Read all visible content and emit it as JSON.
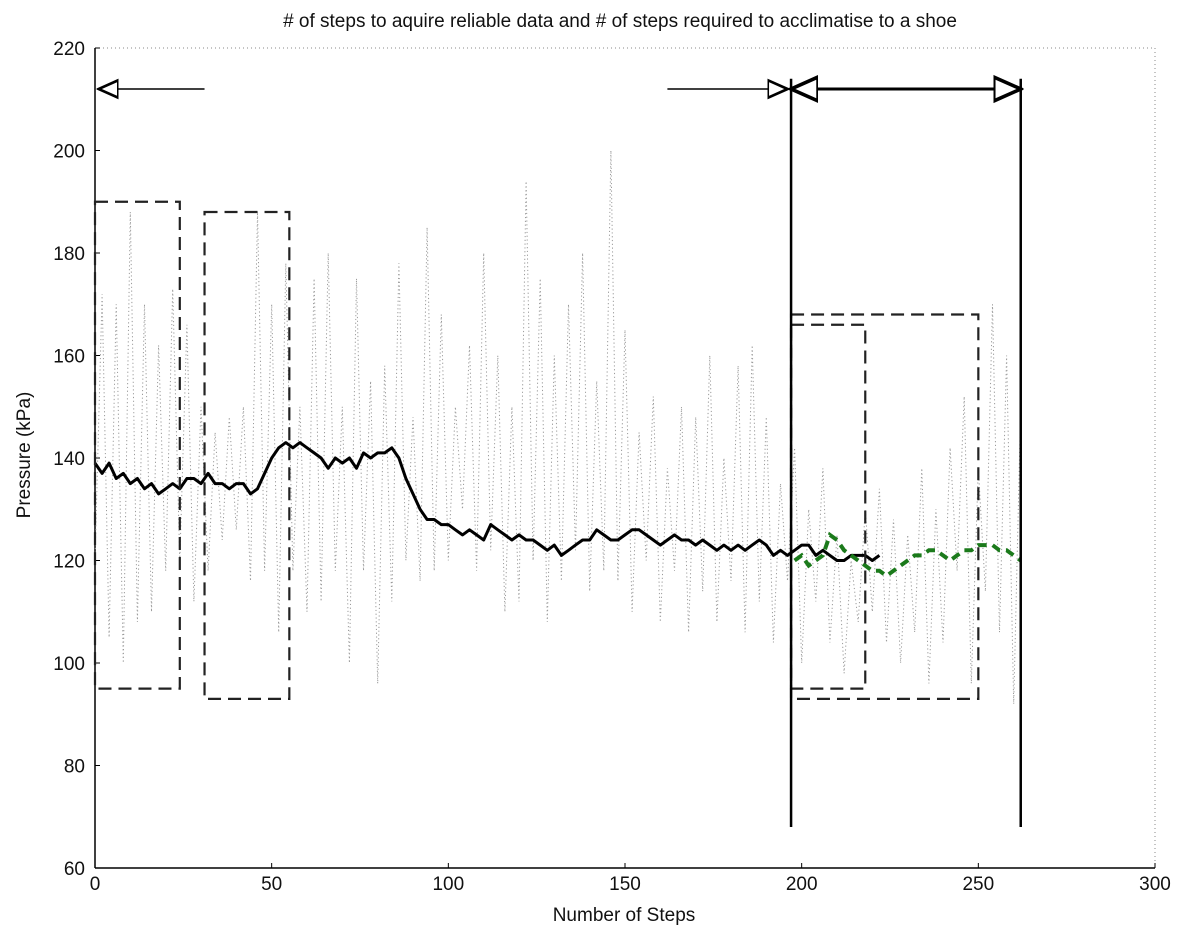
{
  "chart_data": {
    "type": "line",
    "title": "# of steps to aquire reliable data and # of steps required to acclimatise to a shoe",
    "xlabel": "Number of Steps",
    "ylabel": "Pressure (kPa)",
    "xlim": [
      0,
      300
    ],
    "ylim": [
      60,
      220
    ],
    "xticks": [
      0,
      50,
      100,
      150,
      200,
      250,
      300
    ],
    "yticks": [
      60,
      80,
      100,
      120,
      140,
      160,
      180,
      200,
      220
    ],
    "grid": false,
    "legend": "none",
    "series": [
      {
        "style": "dotted",
        "color": "#9a9a9a",
        "x": [
          0,
          2,
          4,
          6,
          8,
          10,
          12,
          14,
          16,
          18,
          20,
          22,
          24,
          26,
          28,
          30,
          32,
          34,
          36,
          38,
          40,
          42,
          44,
          46,
          48,
          50,
          52,
          54,
          56,
          58,
          60,
          62,
          64,
          66,
          68,
          70,
          72,
          74,
          76,
          78,
          80,
          82,
          84,
          86,
          88,
          90,
          92,
          94,
          96,
          98,
          100,
          102,
          104,
          106,
          108,
          110,
          112,
          114,
          116,
          118,
          120,
          122,
          124,
          126,
          128,
          130,
          132,
          134,
          136,
          138,
          140,
          142,
          144,
          146,
          148,
          150,
          152,
          154,
          156,
          158,
          160,
          162,
          164,
          166,
          168,
          170,
          172,
          174,
          176,
          178,
          180,
          182,
          184,
          186,
          188,
          190,
          192,
          194,
          196,
          198,
          200,
          202,
          204,
          206,
          208,
          210,
          212,
          214,
          216,
          218,
          220,
          222,
          224,
          226,
          228,
          230,
          232,
          234,
          236,
          238,
          240,
          242,
          244,
          246,
          248,
          250,
          252,
          254,
          256,
          258,
          260,
          262
        ],
        "y": [
          120,
          172,
          105,
          170,
          100,
          188,
          108,
          170,
          110,
          162,
          118,
          173,
          120,
          166,
          112,
          150,
          118,
          145,
          124,
          148,
          126,
          150,
          116,
          188,
          118,
          170,
          106,
          178,
          118,
          150,
          110,
          175,
          112,
          180,
          118,
          150,
          100,
          175,
          118,
          155,
          96,
          158,
          112,
          178,
          120,
          148,
          116,
          185,
          118,
          168,
          120,
          150,
          130,
          162,
          118,
          180,
          122,
          160,
          110,
          150,
          112,
          194,
          120,
          175,
          108,
          160,
          116,
          170,
          122,
          180,
          114,
          155,
          118,
          200,
          116,
          165,
          110,
          145,
          120,
          152,
          108,
          138,
          118,
          150,
          106,
          148,
          114,
          160,
          108,
          140,
          116,
          158,
          106,
          162,
          112,
          148,
          104,
          135,
          116,
          142,
          100,
          130,
          112,
          138,
          104,
          125,
          98,
          120,
          108,
          130,
          110,
          134,
          104,
          128,
          100,
          125,
          106,
          138,
          96,
          130,
          104,
          142,
          118,
          152,
          96,
          138,
          114,
          170,
          106,
          160,
          92,
          150
        ],
        "x_note": "",
        "marks": "points"
      },
      {
        "style": "solid",
        "color": "#000000",
        "x": [
          0,
          2,
          4,
          6,
          8,
          10,
          12,
          14,
          16,
          18,
          20,
          22,
          24,
          26,
          28,
          30,
          32,
          34,
          36,
          38,
          40,
          42,
          44,
          46,
          48,
          50,
          52,
          54,
          56,
          58,
          60,
          62,
          64,
          66,
          68,
          70,
          72,
          74,
          76,
          78,
          80,
          82,
          84,
          86,
          88,
          90,
          92,
          94,
          96,
          98,
          100,
          102,
          104,
          106,
          108,
          110,
          112,
          114,
          116,
          118,
          120,
          122,
          124,
          126,
          128,
          130,
          132,
          134,
          136,
          138,
          140,
          142,
          144,
          146,
          148,
          150,
          152,
          154,
          156,
          158,
          160,
          162,
          164,
          166,
          168,
          170,
          172,
          174,
          176,
          178,
          180,
          182,
          184,
          186,
          188,
          190,
          192,
          194,
          196,
          198,
          200,
          202,
          204,
          206,
          208,
          210,
          212,
          214,
          216,
          218,
          220,
          222
        ],
        "y": [
          139,
          137,
          139,
          136,
          137,
          135,
          136,
          134,
          135,
          133,
          134,
          135,
          134,
          136,
          136,
          135,
          137,
          135,
          135,
          134,
          135,
          135,
          133,
          134,
          137,
          140,
          142,
          143,
          142,
          143,
          142,
          141,
          140,
          138,
          140,
          139,
          140,
          138,
          141,
          140,
          141,
          141,
          142,
          140,
          136,
          133,
          130,
          128,
          128,
          127,
          127,
          126,
          125,
          126,
          125,
          124,
          127,
          126,
          125,
          124,
          125,
          124,
          124,
          123,
          122,
          123,
          121,
          122,
          123,
          124,
          124,
          126,
          125,
          124,
          124,
          125,
          126,
          126,
          125,
          124,
          123,
          124,
          125,
          124,
          124,
          123,
          124,
          123,
          122,
          123,
          122,
          123,
          122,
          123,
          124,
          123,
          121,
          122,
          121,
          122,
          123,
          123,
          121,
          122,
          121,
          120,
          120,
          121,
          121,
          121,
          120,
          121
        ]
      },
      {
        "style": "dashed",
        "color": "#1b7a1b",
        "x": [
          198,
          200,
          202,
          204,
          206,
          208,
          210,
          212,
          214,
          216,
          218,
          220,
          222,
          224,
          226,
          228,
          230,
          232,
          234,
          236,
          238,
          240,
          242,
          244,
          246,
          248,
          250,
          252,
          254,
          256,
          258,
          260,
          262
        ],
        "y": [
          120,
          121,
          119,
          120,
          121,
          125,
          124,
          122,
          121,
          120,
          119,
          118,
          118,
          117,
          118,
          119,
          120,
          121,
          121,
          122,
          122,
          121,
          120,
          121,
          122,
          122,
          123,
          123,
          123,
          122,
          122,
          121,
          120
        ]
      }
    ],
    "annotations": {
      "boxes": [
        {
          "x0": 0,
          "x1": 24,
          "y0": 95,
          "y1": 190
        },
        {
          "x0": 31,
          "x1": 55,
          "y0": 93,
          "y1": 188
        },
        {
          "x0": 197,
          "x1": 218,
          "y0": 95,
          "y1": 166
        },
        {
          "x0": 197,
          "x1": 250,
          "y0": 93,
          "y1": 168
        }
      ],
      "vlines": [
        {
          "x": 197,
          "y0": 68,
          "y1": 214
        },
        {
          "x": 262,
          "y0": 68,
          "y1": 214
        }
      ],
      "arrows": [
        {
          "from": [
            31,
            212
          ],
          "to": [
            1,
            212
          ],
          "weight": "thin"
        },
        {
          "from": [
            162,
            212
          ],
          "to": [
            196,
            212
          ],
          "weight": "thin"
        },
        {
          "from": [
            197,
            212
          ],
          "to": [
            262,
            212
          ],
          "weight": "bold",
          "double": true
        }
      ]
    }
  }
}
